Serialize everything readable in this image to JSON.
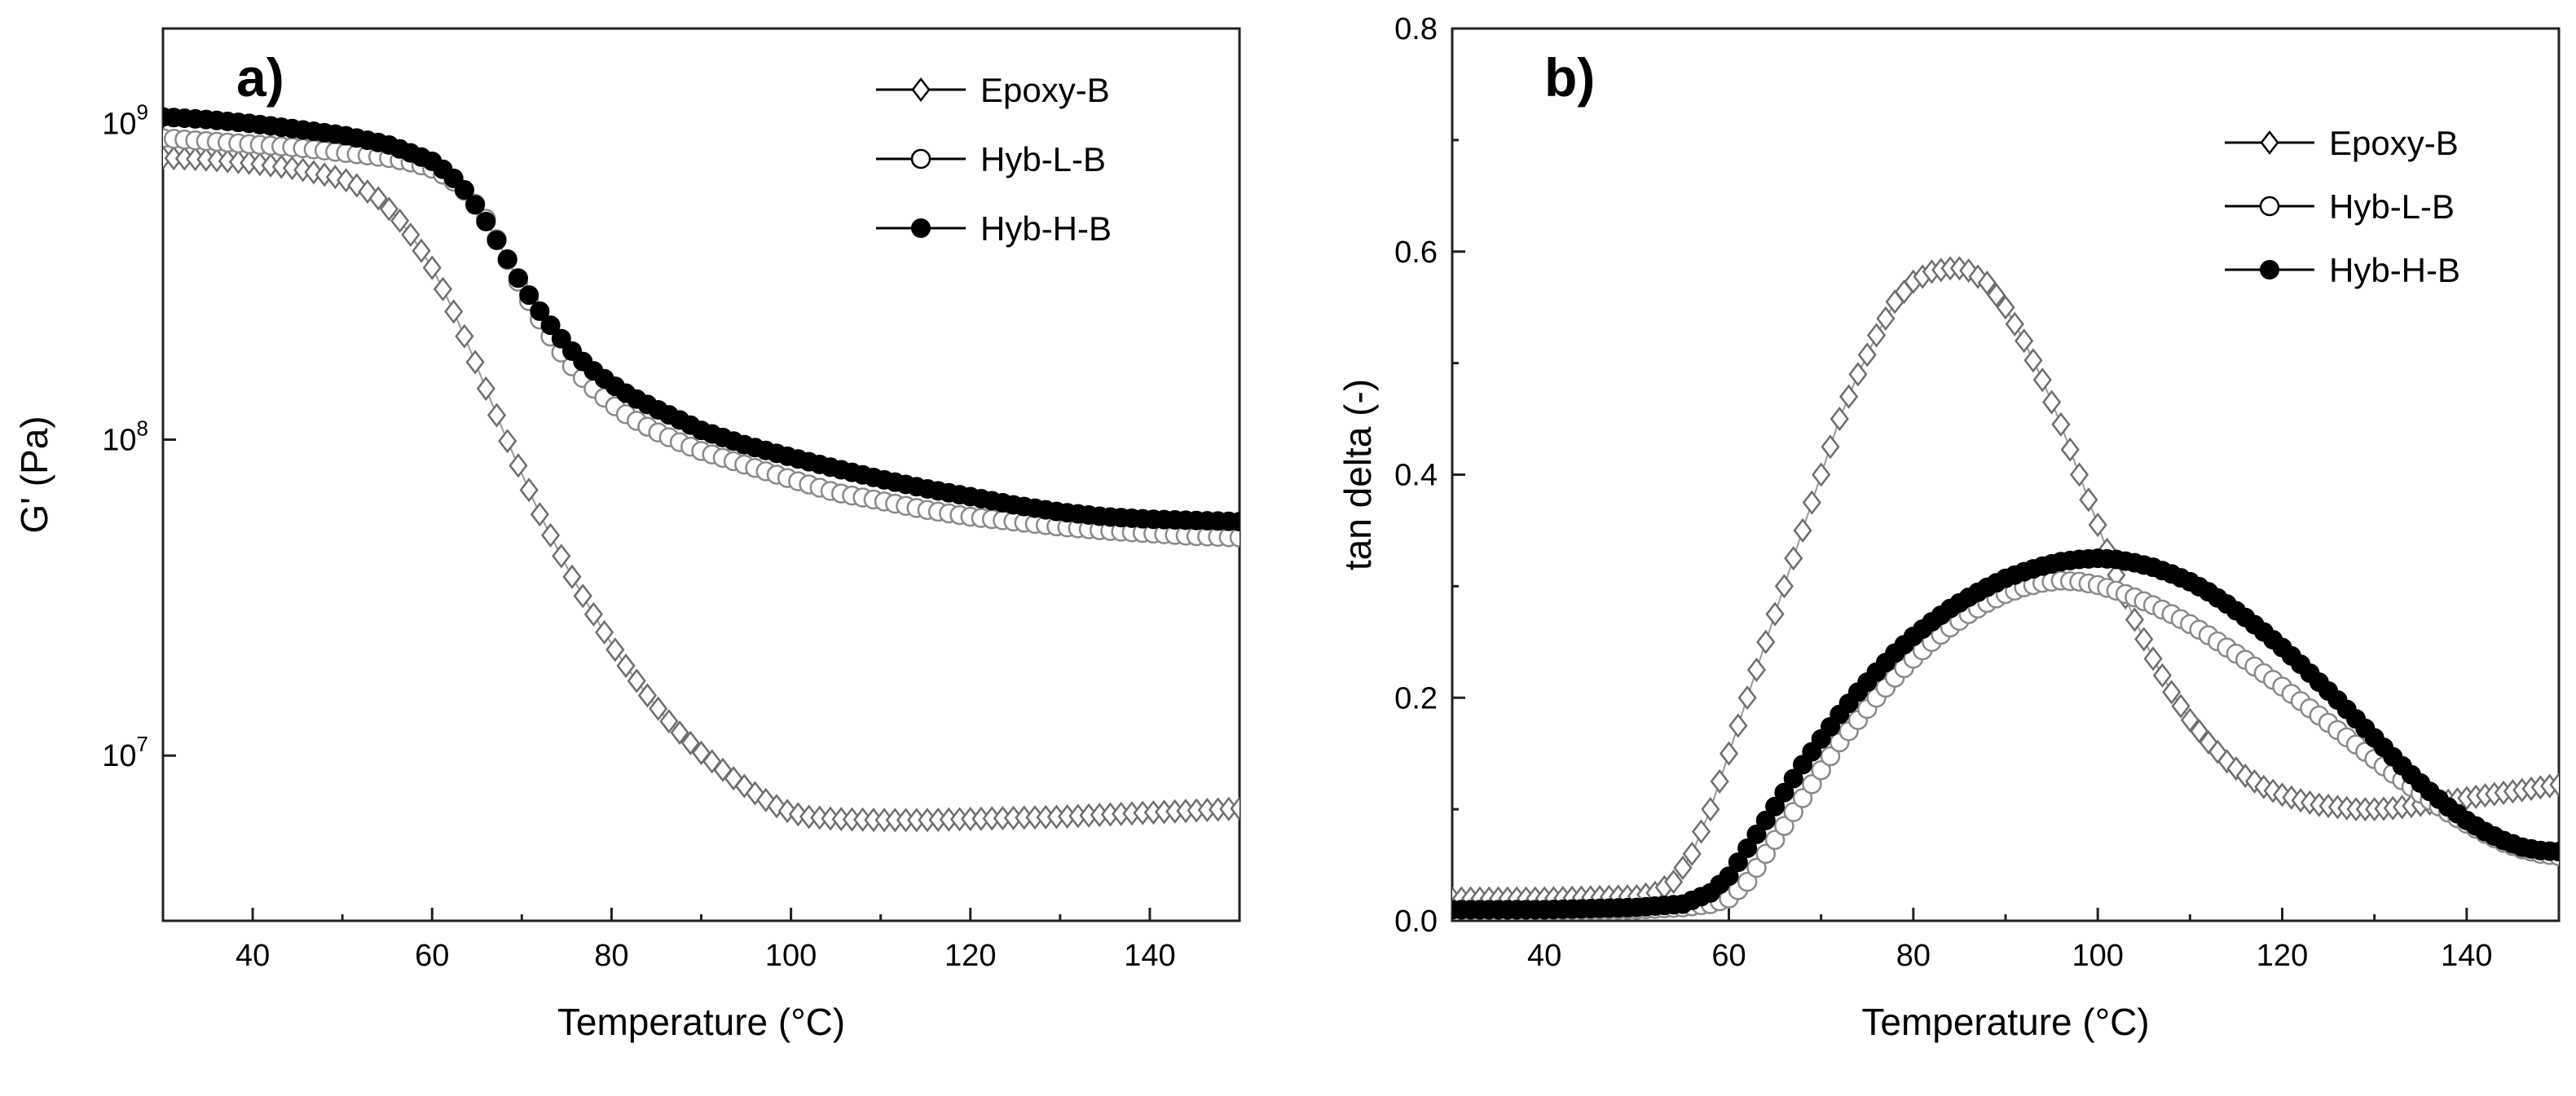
{
  "figure": {
    "panels": [
      "a)",
      "b)"
    ]
  },
  "chart_data": [
    {
      "type": "scatter",
      "panel_label": "a)",
      "title": "",
      "xlabel": "Temperature (°C)",
      "ylabel": "G' (Pa)",
      "yscale": "log",
      "xlim": [
        30,
        150
      ],
      "ylim": [
        3000000,
        2000000000
      ],
      "x_ticks": [
        40,
        60,
        80,
        100,
        120,
        140
      ],
      "x_tick_labels": [
        "40",
        "60",
        "80",
        "100",
        "120",
        "140"
      ],
      "y_ticks": [
        10000000,
        100000000,
        1000000000
      ],
      "y_tick_labels": [
        {
          "base": "10",
          "exp": "7"
        },
        {
          "base": "10",
          "exp": "8"
        },
        {
          "base": "10",
          "exp": "9"
        }
      ],
      "legend_position": "top-right",
      "series": [
        {
          "name": "Epoxy-B",
          "marker": "diamond-open",
          "x": [
            30,
            35,
            40,
            45,
            50,
            52,
            54,
            56,
            58,
            60,
            62,
            64,
            66,
            68,
            70,
            72,
            74,
            76,
            78,
            80,
            82,
            84,
            86,
            88,
            90,
            92,
            94,
            96,
            98,
            100,
            102,
            105,
            110,
            115,
            120,
            125,
            130,
            135,
            140,
            145,
            150
          ],
          "y": [
            780000000,
            770000000,
            750000000,
            720000000,
            670000000,
            630000000,
            580000000,
            510000000,
            430000000,
            350000000,
            270000000,
            200000000,
            145000000,
            105000000,
            78000000,
            58000000,
            45000000,
            35000000,
            28000000,
            22500000,
            18500000,
            15500000,
            13200000,
            11500000,
            10200000,
            9200000,
            8300000,
            7600000,
            7000000,
            6600000,
            6400000,
            6300000,
            6250000,
            6250000,
            6300000,
            6350000,
            6400000,
            6500000,
            6600000,
            6700000,
            6800000
          ]
        },
        {
          "name": "Hyb-L-B",
          "marker": "circle-open",
          "x": [
            30,
            35,
            40,
            45,
            50,
            55,
            58,
            60,
            62,
            64,
            66,
            68,
            70,
            72,
            74,
            76,
            78,
            80,
            82,
            85,
            88,
            90,
            95,
            100,
            105,
            110,
            115,
            120,
            125,
            130,
            135,
            140,
            145,
            150
          ],
          "y": [
            900000000,
            880000000,
            860000000,
            840000000,
            810000000,
            780000000,
            750000000,
            720000000,
            670000000,
            600000000,
            500000000,
            390000000,
            300000000,
            240000000,
            195000000,
            165000000,
            145000000,
            130000000,
            118000000,
            106000000,
            97000000,
            92000000,
            83000000,
            75000000,
            68000000,
            64000000,
            60000000,
            57000000,
            55000000,
            53000000,
            51500000,
            50500000,
            49500000,
            49000000
          ]
        },
        {
          "name": "Hyb-H-B",
          "marker": "circle-filled",
          "x": [
            30,
            35,
            40,
            45,
            50,
            55,
            58,
            60,
            62,
            64,
            66,
            68,
            70,
            72,
            74,
            76,
            78,
            80,
            82,
            85,
            88,
            90,
            95,
            100,
            105,
            110,
            115,
            120,
            125,
            130,
            135,
            140,
            145,
            150
          ],
          "y": [
            1050000000,
            1030000000,
            1000000000,
            960000000,
            920000000,
            860000000,
            800000000,
            760000000,
            690000000,
            600000000,
            490000000,
            390000000,
            310000000,
            255000000,
            215000000,
            185000000,
            165000000,
            150000000,
            138000000,
            125000000,
            114000000,
            107000000,
            96000000,
            88000000,
            81000000,
            75000000,
            70000000,
            66000000,
            62000000,
            59000000,
            57000000,
            56000000,
            55500000,
            55000000
          ]
        }
      ]
    },
    {
      "type": "scatter",
      "panel_label": "b)",
      "title": "",
      "xlabel": "Temperature (°C)",
      "ylabel": "tan delta (-)",
      "xlim": [
        30,
        150
      ],
      "ylim": [
        0,
        0.8
      ],
      "x_ticks": [
        40,
        60,
        80,
        100,
        120,
        140
      ],
      "x_tick_labels": [
        "40",
        "60",
        "80",
        "100",
        "120",
        "140"
      ],
      "y_ticks": [
        0.0,
        0.2,
        0.4,
        0.6,
        0.8
      ],
      "y_tick_labels": [
        "0.0",
        "0.2",
        "0.4",
        "0.6",
        "0.8"
      ],
      "legend_position": "top-right",
      "series": [
        {
          "name": "Epoxy-B",
          "marker": "diamond-open",
          "x": [
            30,
            40,
            50,
            52,
            54,
            56,
            58,
            60,
            62,
            64,
            66,
            68,
            70,
            72,
            74,
            76,
            78,
            80,
            82,
            84,
            85,
            86,
            88,
            90,
            92,
            94,
            96,
            98,
            100,
            102,
            104,
            106,
            108,
            110,
            112,
            114,
            116,
            118,
            120,
            122,
            124,
            126,
            128,
            130,
            132,
            135,
            140,
            145,
            150
          ],
          "y": [
            0.02,
            0.02,
            0.022,
            0.025,
            0.035,
            0.06,
            0.1,
            0.15,
            0.2,
            0.25,
            0.3,
            0.35,
            0.4,
            0.45,
            0.49,
            0.525,
            0.555,
            0.573,
            0.582,
            0.585,
            0.585,
            0.583,
            0.572,
            0.55,
            0.52,
            0.485,
            0.445,
            0.4,
            0.355,
            0.31,
            0.27,
            0.235,
            0.205,
            0.18,
            0.16,
            0.143,
            0.13,
            0.12,
            0.113,
            0.108,
            0.104,
            0.102,
            0.1,
            0.1,
            0.101,
            0.104,
            0.11,
            0.116,
            0.122
          ]
        },
        {
          "name": "Hyb-L-B",
          "marker": "circle-open",
          "x": [
            30,
            40,
            50,
            55,
            58,
            60,
            62,
            64,
            66,
            68,
            70,
            72,
            74,
            76,
            78,
            80,
            82,
            84,
            86,
            88,
            90,
            92,
            94,
            96,
            98,
            100,
            102,
            104,
            106,
            108,
            110,
            112,
            114,
            116,
            118,
            120,
            122,
            124,
            126,
            128,
            130,
            132,
            134,
            136,
            138,
            140,
            142,
            144,
            146,
            148,
            150
          ],
          "y": [
            0.01,
            0.01,
            0.01,
            0.012,
            0.015,
            0.02,
            0.035,
            0.06,
            0.085,
            0.11,
            0.135,
            0.16,
            0.18,
            0.2,
            0.218,
            0.235,
            0.25,
            0.263,
            0.275,
            0.285,
            0.293,
            0.299,
            0.303,
            0.305,
            0.304,
            0.301,
            0.296,
            0.29,
            0.283,
            0.275,
            0.266,
            0.256,
            0.245,
            0.234,
            0.222,
            0.21,
            0.197,
            0.184,
            0.171,
            0.158,
            0.145,
            0.132,
            0.12,
            0.108,
            0.097,
            0.087,
            0.078,
            0.07,
            0.064,
            0.06,
            0.058
          ]
        },
        {
          "name": "Hyb-H-B",
          "marker": "circle-filled",
          "x": [
            30,
            40,
            50,
            55,
            58,
            60,
            62,
            64,
            66,
            68,
            70,
            72,
            74,
            76,
            78,
            80,
            82,
            84,
            86,
            88,
            90,
            92,
            94,
            96,
            98,
            100,
            102,
            104,
            106,
            108,
            110,
            112,
            114,
            116,
            118,
            120,
            122,
            124,
            126,
            128,
            130,
            132,
            134,
            136,
            138,
            140,
            142,
            144,
            146,
            148,
            150
          ],
          "y": [
            0.01,
            0.01,
            0.012,
            0.015,
            0.025,
            0.04,
            0.065,
            0.09,
            0.115,
            0.14,
            0.163,
            0.185,
            0.205,
            0.223,
            0.24,
            0.255,
            0.268,
            0.28,
            0.29,
            0.299,
            0.307,
            0.313,
            0.318,
            0.322,
            0.324,
            0.325,
            0.324,
            0.321,
            0.317,
            0.311,
            0.304,
            0.295,
            0.284,
            0.272,
            0.259,
            0.245,
            0.23,
            0.214,
            0.198,
            0.181,
            0.164,
            0.147,
            0.131,
            0.116,
            0.102,
            0.09,
            0.08,
            0.072,
            0.066,
            0.063,
            0.062
          ]
        }
      ]
    }
  ]
}
